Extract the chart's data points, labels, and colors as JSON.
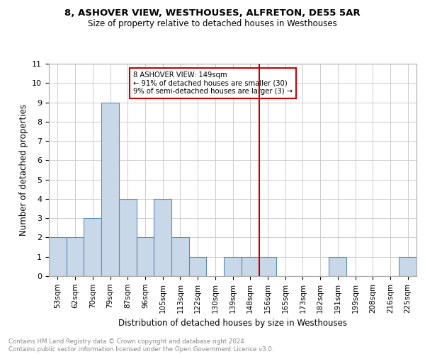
{
  "title": "8, ASHOVER VIEW, WESTHOUSES, ALFRETON, DE55 5AR",
  "subtitle": "Size of property relative to detached houses in Westhouses",
  "xlabel": "Distribution of detached houses by size in Westhouses",
  "ylabel": "Number of detached properties",
  "categories": [
    "53sqm",
    "62sqm",
    "70sqm",
    "79sqm",
    "87sqm",
    "96sqm",
    "105sqm",
    "113sqm",
    "122sqm",
    "130sqm",
    "139sqm",
    "148sqm",
    "156sqm",
    "165sqm",
    "173sqm",
    "182sqm",
    "191sqm",
    "199sqm",
    "208sqm",
    "216sqm",
    "225sqm"
  ],
  "values": [
    2,
    2,
    3,
    9,
    4,
    2,
    4,
    2,
    1,
    0,
    1,
    1,
    1,
    0,
    0,
    0,
    1,
    0,
    0,
    0,
    1
  ],
  "bar_color": "#c8d8e8",
  "bar_edge_color": "#5b8db8",
  "vline_x_index": 11.5,
  "vline_color": "#cc0000",
  "annotation_text": "8 ASHOVER VIEW: 149sqm\n← 91% of detached houses are smaller (30)\n9% of semi-detached houses are larger (3) →",
  "annotation_box_color": "#cc0000",
  "ylim": [
    0,
    11
  ],
  "yticks": [
    0,
    1,
    2,
    3,
    4,
    5,
    6,
    7,
    8,
    9,
    10,
    11
  ],
  "footer_line1": "Contains HM Land Registry data © Crown copyright and database right 2024.",
  "footer_line2": "Contains public sector information licensed under the Open Government Licence v3.0.",
  "background_color": "#ffffff",
  "grid_color": "#cccccc"
}
